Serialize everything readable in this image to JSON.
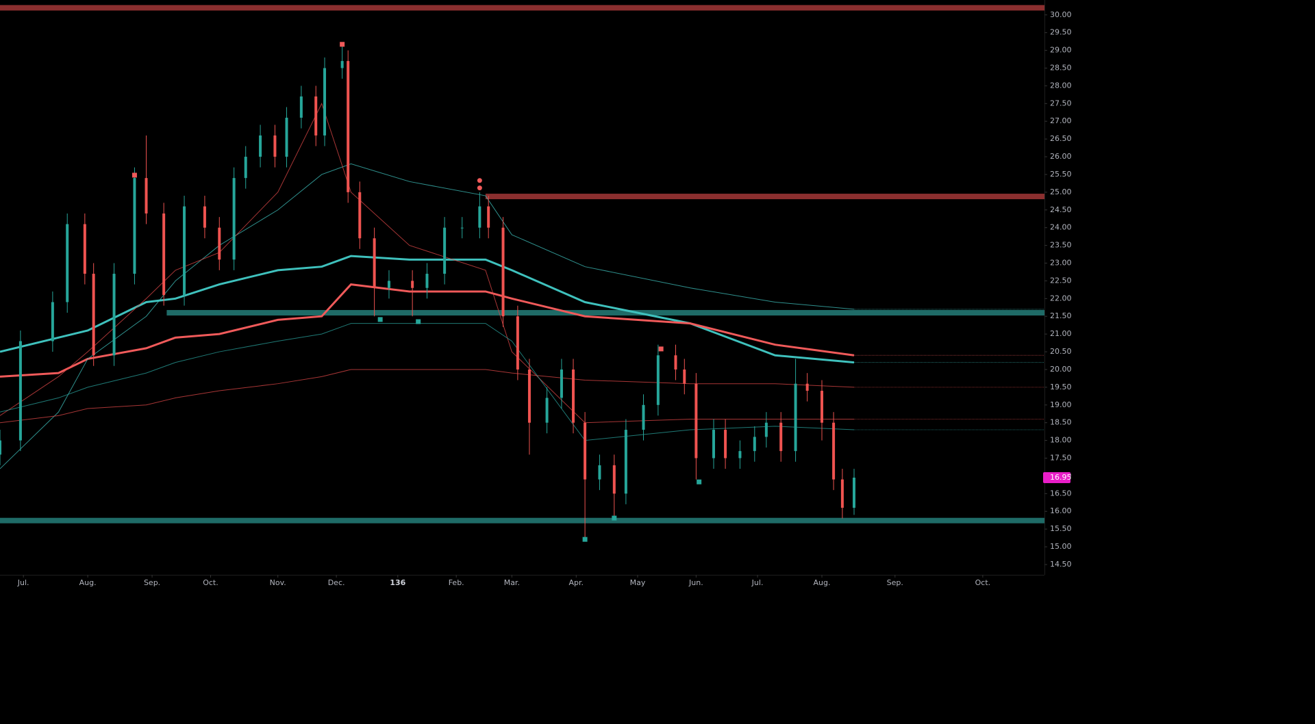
{
  "chart_data": {
    "type": "candlestick",
    "x": [
      0,
      7,
      18,
      23,
      29,
      32,
      39,
      46,
      50,
      56,
      63,
      70,
      75,
      80,
      84,
      89,
      94,
      98,
      103,
      108,
      111,
      117,
      119,
      123,
      128,
      133,
      141,
      146,
      152,
      158,
      164,
      167,
      172,
      177,
      181,
      187,
      192,
      196,
      200,
      205,
      210,
      214,
      220,
      225,
      231,
      234,
      238,
      244,
      248,
      253,
      258,
      262,
      267,
      272,
      276,
      281,
      285,
      288,
      292
    ],
    "open": [
      17.6,
      18.0,
      20.8,
      21.9,
      24.1,
      22.7,
      20.4,
      22.7,
      25.4,
      24.4,
      22.1,
      24.6,
      24.0,
      23.1,
      25.4,
      26.0,
      26.6,
      26.0,
      27.1,
      27.7,
      26.6,
      28.5,
      28.7,
      25.0,
      23.7,
      22.3,
      22.5,
      22.3,
      22.7,
      24.0,
      24.0,
      24.6,
      24.0,
      21.5,
      20.0,
      18.5,
      19.2,
      20.0,
      18.5,
      16.9,
      17.3,
      16.5,
      18.3,
      19.0,
      20.4,
      20.0,
      19.6,
      17.5,
      18.3,
      17.5,
      17.7,
      18.1,
      18.5,
      17.7,
      19.6,
      19.4,
      18.5,
      16.9,
      16.1
    ],
    "high": [
      18.3,
      21.1,
      22.2,
      24.4,
      24.4,
      23.0,
      23.0,
      25.7,
      26.6,
      24.7,
      24.9,
      24.9,
      24.3,
      25.7,
      26.3,
      26.9,
      26.9,
      27.4,
      28.0,
      28.0,
      28.8,
      29.2,
      29.0,
      25.3,
      24.0,
      22.8,
      22.8,
      23.0,
      24.3,
      24.3,
      25.0,
      24.9,
      24.3,
      21.8,
      20.3,
      19.5,
      20.3,
      20.3,
      18.8,
      17.6,
      17.6,
      18.6,
      19.3,
      20.7,
      20.7,
      20.3,
      19.9,
      18.6,
      18.6,
      18.0,
      18.4,
      18.8,
      18.8,
      20.3,
      19.9,
      19.7,
      18.8,
      17.2,
      17.2
    ],
    "low": [
      17.3,
      17.7,
      20.5,
      21.6,
      22.4,
      20.1,
      20.1,
      22.4,
      24.1,
      21.8,
      21.8,
      23.7,
      22.8,
      22.8,
      25.1,
      25.7,
      25.7,
      25.7,
      26.8,
      26.3,
      26.3,
      28.2,
      24.7,
      23.4,
      21.5,
      22.0,
      21.5,
      22.0,
      22.4,
      23.7,
      23.7,
      23.7,
      21.2,
      19.7,
      17.6,
      18.2,
      18.9,
      18.2,
      15.2,
      16.6,
      15.8,
      16.2,
      18.0,
      18.7,
      19.7,
      19.3,
      16.9,
      17.2,
      17.2,
      17.2,
      17.4,
      17.8,
      17.4,
      17.4,
      19.1,
      18.0,
      16.6,
      15.8,
      15.9
    ],
    "close": [
      18.0,
      20.8,
      21.9,
      24.1,
      22.7,
      20.4,
      22.7,
      25.4,
      24.4,
      22.1,
      24.6,
      24.0,
      23.1,
      25.4,
      26.0,
      26.6,
      26.0,
      27.1,
      27.7,
      26.6,
      28.5,
      28.7,
      25.0,
      23.7,
      22.3,
      22.5,
      22.3,
      22.7,
      24.0,
      24.0,
      24.6,
      24.0,
      21.5,
      20.0,
      18.5,
      19.2,
      20.0,
      18.5,
      16.9,
      17.3,
      16.5,
      18.3,
      19.0,
      20.4,
      20.0,
      19.6,
      17.5,
      18.3,
      17.5,
      17.7,
      18.1,
      18.5,
      17.7,
      19.6,
      19.4,
      18.5,
      16.9,
      16.1,
      16.95
    ],
    "up_color": "#26a69a",
    "down_color": "#ef5350",
    "overlays": {
      "x": [
        0,
        20,
        30,
        50,
        60,
        75,
        95,
        110,
        120,
        140,
        166,
        175,
        200,
        236,
        265,
        292
      ],
      "series": [
        {
          "color": "#3fc1bd",
          "width": 3,
          "values": [
            20.5,
            20.9,
            21.1,
            21.9,
            22.0,
            22.4,
            22.8,
            22.9,
            23.2,
            23.1,
            23.1,
            22.8,
            21.9,
            21.3,
            20.4,
            20.2
          ]
        },
        {
          "color": "#f05a5a",
          "width": 3,
          "values": [
            19.8,
            19.9,
            20.3,
            20.6,
            20.9,
            21.0,
            21.4,
            21.5,
            22.4,
            22.2,
            22.2,
            22.0,
            21.5,
            21.3,
            20.7,
            20.4
          ]
        },
        {
          "color": "#3fc1bd",
          "width": 1,
          "values": [
            17.2,
            18.8,
            20.3,
            21.5,
            22.5,
            23.5,
            24.5,
            25.5,
            25.8,
            25.3,
            24.9,
            23.8,
            22.9,
            22.3,
            21.9,
            21.7
          ]
        },
        {
          "color": "#e04848",
          "width": 1,
          "values": [
            18.5,
            18.7,
            18.9,
            19.0,
            19.2,
            19.4,
            19.6,
            19.8,
            20.0,
            20.0,
            20.0,
            19.9,
            19.7,
            19.6,
            19.6,
            19.5
          ]
        },
        {
          "color": "#e04848",
          "width": 1,
          "values": [
            18.7,
            19.8,
            20.5,
            22.0,
            22.8,
            23.3,
            25.0,
            27.5,
            25.0,
            23.5,
            22.8,
            20.5,
            18.5,
            18.6,
            18.6,
            18.6
          ]
        },
        {
          "color": "#2aa39e",
          "width": 1,
          "values": [
            18.8,
            19.2,
            19.5,
            19.9,
            20.2,
            20.5,
            20.8,
            21.0,
            21.3,
            21.3,
            21.3,
            20.8,
            18.0,
            18.3,
            18.4,
            18.3
          ]
        }
      ]
    },
    "levels": [
      {
        "value": 30.2,
        "start": 0,
        "color": "#8b2f2f"
      },
      {
        "value": 24.88,
        "start": 166,
        "color": "#8b2f2f"
      },
      {
        "value": 21.6,
        "start": 57,
        "color": "#1f6b67"
      },
      {
        "value": 15.74,
        "start": 0,
        "color": "#1f6b67"
      }
    ],
    "markers": [
      {
        "x": 117,
        "value": 29.17,
        "color": "#f05a5a",
        "shape": "square"
      },
      {
        "x": 46,
        "value": 25.48,
        "color": "#f05a5a",
        "shape": "square"
      },
      {
        "x": 164,
        "value": 25.33,
        "color": "#f05a5a",
        "shape": "dot"
      },
      {
        "x": 164,
        "value": 25.12,
        "color": "#f05a5a",
        "shape": "dot"
      },
      {
        "x": 226,
        "value": 20.58,
        "color": "#f05a5a",
        "shape": "square"
      },
      {
        "x": 130,
        "value": 21.41,
        "color": "#26a69a",
        "shape": "square"
      },
      {
        "x": 143,
        "value": 21.35,
        "color": "#26a69a",
        "shape": "square"
      },
      {
        "x": 200,
        "value": 15.21,
        "color": "#26a69a",
        "shape": "square"
      },
      {
        "x": 210,
        "value": 15.81,
        "color": "#26a69a",
        "shape": "square"
      },
      {
        "x": 239,
        "value": 16.83,
        "color": "#26a69a",
        "shape": "square"
      }
    ],
    "last_price": 16.95,
    "last_price_color": "#e91ec8",
    "xlim": [
      0,
      357.1
    ],
    "ylim": [
      14.21,
      30.42
    ],
    "xticks": [
      {
        "value": 8,
        "label": "Jul."
      },
      {
        "value": 30,
        "label": "Aug."
      },
      {
        "value": 52,
        "label": "Sep."
      },
      {
        "value": 72,
        "label": "Oct."
      },
      {
        "value": 95,
        "label": "Nov."
      },
      {
        "value": 115,
        "label": "Dec."
      },
      136,
      {
        "value": 156,
        "label": "Feb."
      },
      {
        "value": 175,
        "label": "Mar."
      },
      {
        "value": 197,
        "label": "Apr."
      },
      {
        "value": 218,
        "label": "May"
      },
      {
        "value": 238,
        "label": "Jun."
      },
      {
        "value": 259,
        "label": "Jul."
      },
      {
        "value": 281,
        "label": "Aug."
      },
      {
        "value": 306,
        "label": "Sep."
      },
      {
        "value": 336,
        "label": "Oct."
      }
    ],
    "yticks": [
      {
        "value": 14.5,
        "label": "14.50"
      },
      {
        "value": 15,
        "label": "15.00"
      },
      {
        "value": 15.5,
        "label": "15.50"
      },
      {
        "value": 16,
        "label": "16.00"
      },
      {
        "value": 16.5,
        "label": "16.50"
      },
      {
        "value": 17,
        "label": "17.00"
      },
      {
        "value": 17.5,
        "label": "17.50"
      },
      {
        "value": 18,
        "label": "18.00"
      },
      {
        "value": 18.5,
        "label": "18.50"
      },
      {
        "value": 19,
        "label": "19.00"
      },
      {
        "value": 19.5,
        "label": "19.50"
      },
      {
        "value": 20,
        "label": "20.00"
      },
      {
        "value": 20.5,
        "label": "20.50"
      },
      {
        "value": 21,
        "label": "21.00"
      },
      {
        "value": 21.5,
        "label": "21.50"
      },
      {
        "value": 22,
        "label": "22.00"
      },
      {
        "value": 22.5,
        "label": "22.50"
      },
      {
        "value": 23,
        "label": "23.00"
      },
      {
        "value": 23.5,
        "label": "23.50"
      },
      {
        "value": 24,
        "label": "24.00"
      },
      {
        "value": 24.5,
        "label": "24.50"
      },
      {
        "value": 25,
        "label": "25.00"
      },
      {
        "value": 25.5,
        "label": "25.50"
      },
      {
        "value": 26,
        "label": "26.00"
      },
      {
        "value": 26.5,
        "label": "26.50"
      },
      {
        "value": 27,
        "label": "27.00"
      },
      {
        "value": 27.5,
        "label": "27.50"
      },
      {
        "value": 28,
        "label": "28.00"
      },
      {
        "value": 28.5,
        "label": "28.50"
      },
      {
        "value": 29,
        "label": "29.00"
      },
      {
        "value": 29.5,
        "label": "29.50"
      },
      {
        "value": 30,
        "label": "30.00"
      }
    ],
    "grid": false
  }
}
